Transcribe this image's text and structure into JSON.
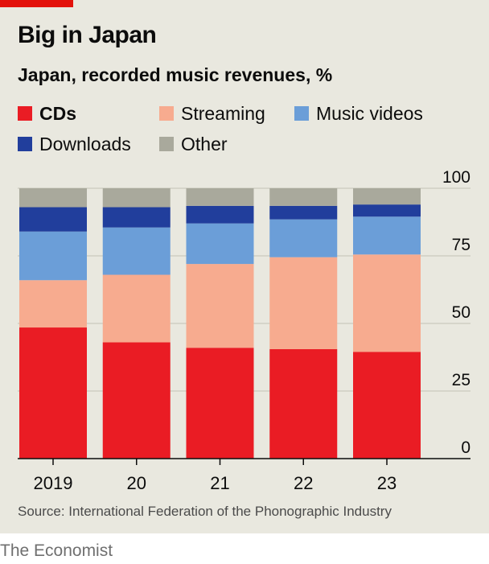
{
  "title": "Big in Japan",
  "subtitle": "Japan, recorded music revenues, %",
  "source": "Source: International Federation of the Phonographic Industry",
  "brand": "The Economist",
  "colors": {
    "background": "#e9e8df",
    "accent": "#e3120b",
    "CDs": "#ea1c24",
    "Streaming": "#f7ab8f",
    "Music videos": "#6b9ed8",
    "Downloads": "#213e9c",
    "Other": "#a9a99c"
  },
  "legend": [
    {
      "label": "CDs",
      "color": "#ea1c24",
      "bold": true
    },
    {
      "label": "Streaming",
      "color": "#f7ab8f",
      "bold": false
    },
    {
      "label": "Music videos",
      "color": "#6b9ed8",
      "bold": false
    },
    {
      "label": "Downloads",
      "color": "#213e9c",
      "bold": false
    },
    {
      "label": "Other",
      "color": "#a9a99c",
      "bold": false
    }
  ],
  "chart_data": {
    "type": "bar",
    "stacked": true,
    "title": "Big in Japan",
    "subtitle": "Japan, recorded music revenues, %",
    "categories": [
      "2019",
      "20",
      "21",
      "22",
      "23"
    ],
    "series": [
      {
        "name": "CDs",
        "values": [
          48.5,
          43,
          41,
          40.5,
          39.5
        ]
      },
      {
        "name": "Streaming",
        "values": [
          17.5,
          25,
          31,
          34,
          36
        ]
      },
      {
        "name": "Music videos",
        "values": [
          18,
          17.5,
          15,
          14,
          14
        ]
      },
      {
        "name": "Downloads",
        "values": [
          9,
          7.5,
          6.5,
          5,
          4.5
        ]
      },
      {
        "name": "Other",
        "values": [
          7,
          7,
          6.5,
          6.5,
          6
        ]
      }
    ],
    "yticks": [
      0,
      25,
      50,
      75,
      100
    ],
    "ylim": [
      0,
      100
    ],
    "y_axis_position": "right",
    "grid": true,
    "legend_position": "top"
  }
}
